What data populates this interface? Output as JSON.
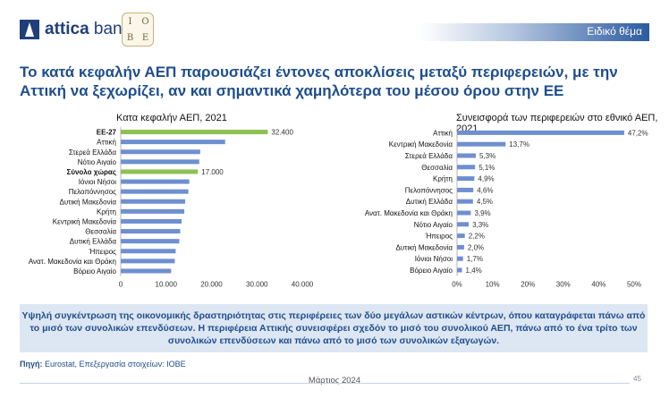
{
  "header": {
    "brand_bold": "attica",
    "brand_rest": " bank",
    "partner_logo_letters": [
      "Ι",
      "Ο",
      "Β",
      "Ε"
    ],
    "section_label": "Ειδικό θέμα"
  },
  "title": "Το κατά κεφαλήν ΑΕΠ παρουσιάζει έντονες αποκλίσεις μεταξύ περιφερειών, με την Αττική να ξεχωρίζει, αν και σημαντικά χαμηλότερα του μέσου όρου στην ΕΕ",
  "colors": {
    "primary": "#1f4e8c",
    "bar": "#6e8fd0",
    "highlight": "#8cc152",
    "summary_bg": "#dde6f3"
  },
  "chart_data": [
    {
      "type": "bar",
      "orientation": "horizontal",
      "title": "Κατα κεφαλήν ΑΕΠ, 2021",
      "categories": [
        "ΕΕ-27",
        "Αττική",
        "Στερεά Ελλάδα",
        "Νότιο Αιγαίο",
        "Σύνολο χώρας",
        "Ιόνιοι Νήσοι",
        "Πελοπόννησος",
        "Δυτική Μακεδονία",
        "Κρήτη",
        "Κεντρική Μακεδονία",
        "Θεσσαλία",
        "Δυτική Ελλάδα",
        "Ήπειρος",
        "Ανατ. Μακεδονία και Θράκη",
        "Βόρειο Αιγαίο"
      ],
      "values": [
        32400,
        23000,
        17500,
        17300,
        17000,
        15100,
        14900,
        14200,
        14000,
        13400,
        13100,
        12900,
        12100,
        11900,
        11100
      ],
      "highlighted": [
        "ΕΕ-27",
        "Σύνολο χώρας"
      ],
      "data_labels": {
        "ΕΕ-27": "32.400",
        "Σύνολο χώρας": "17.000"
      },
      "xlim": [
        0,
        40000
      ],
      "xticks": [
        "0",
        "10.000",
        "20.000",
        "30.000",
        "40.000"
      ]
    },
    {
      "type": "bar",
      "orientation": "horizontal",
      "title": "Συνεισφορά των περιφερειών στο εθνικό ΑΕΠ, 2021",
      "categories": [
        "Αττική",
        "Κεντρική Μακεδονία",
        "Στερεά Ελλάδα",
        "Θεσσαλία",
        "Κρήτη",
        "Πελοπόννησος",
        "Δυτική Ελλάδα",
        "Ανατ. Μακεδονία και Θράκη",
        "Νότιο Αιγαίο",
        "Ήπειρος",
        "Δυτική Μακεδονία",
        "Ιόνιοι Νήσοι",
        "Βόρειο Αιγαίο"
      ],
      "values": [
        47.2,
        13.7,
        5.3,
        5.1,
        4.9,
        4.6,
        4.5,
        3.9,
        3.3,
        2.2,
        2.0,
        1.7,
        1.4
      ],
      "value_labels": [
        "47,2%",
        "13,7%",
        "5,3%",
        "5,1%",
        "4,9%",
        "4,6%",
        "4,5%",
        "3,9%",
        "3,3%",
        "2,2%",
        "2,0%",
        "1,7%",
        "1,4%"
      ],
      "xlim": [
        0,
        50
      ],
      "xticks": [
        "0%",
        "10%",
        "20%",
        "30%",
        "40%",
        "50%"
      ]
    }
  ],
  "summary": "Υψηλή συγκέντρωση της οικονομικής δραστηριότητας στις περιφέρειες των δύο μεγάλων αστικών κέντρων, όπου καταγράφεται πάνω από το μισό των συνολικών επενδύσεων. Η περιφέρεια Αττικής συνεισφέρει σχεδόν το μισό του συνολικού ΑΕΠ, πάνω από το ένα τρίτο των συνολικών επενδύσεων και πάνω από το μισό των συνολικών εξαγωγών.",
  "source_label": "Πηγή:",
  "source_text": " Eurostat, Επεξεργασία στοιχείων: ΙΟΒΕ",
  "footer_date": "Μάρτιος 2024",
  "page_number": "45"
}
